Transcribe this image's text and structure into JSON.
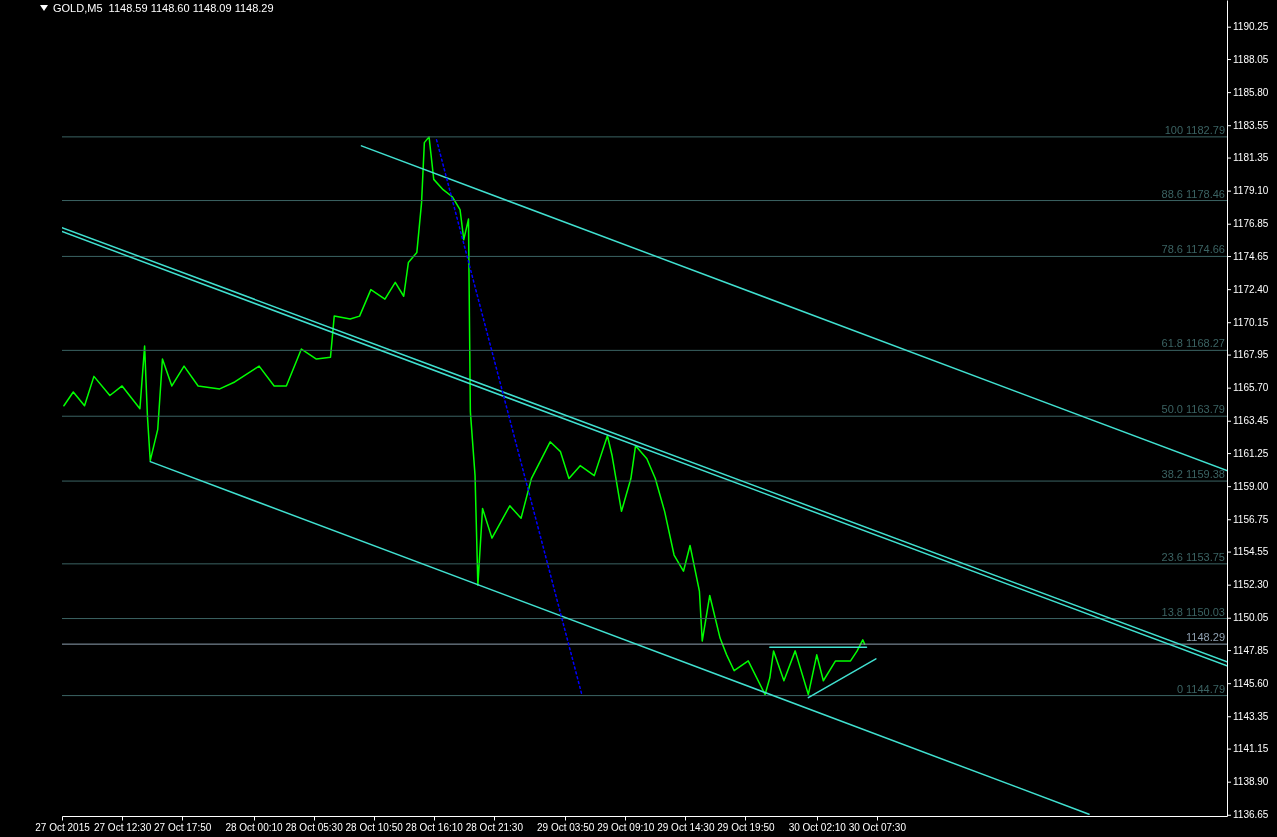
{
  "chart_data": {
    "type": "line",
    "title": "GOLD,M5  1148.59 1148.60 1148.09 1148.29",
    "x": [
      "2015-10-27T07:20",
      "2015-10-27T08:10",
      "2015-10-27T09:10",
      "2015-10-27T10:00",
      "2015-10-27T11:25",
      "2015-10-27T12:30",
      "2015-10-27T14:05",
      "2015-10-27T14:30",
      "2015-10-27T14:45",
      "2015-10-27T15:00",
      "2015-10-27T15:40",
      "2015-10-27T16:05",
      "2015-10-27T16:55",
      "2015-10-27T18:00",
      "2015-10-27T19:15",
      "2015-10-27T21:10",
      "2015-10-27T22:30",
      "2015-10-28T00:40",
      "2015-10-28T02:00",
      "2015-10-28T03:05",
      "2015-10-28T04:25",
      "2015-10-28T05:45",
      "2015-10-28T07:00",
      "2015-10-28T07:20",
      "2015-10-28T08:45",
      "2015-10-28T09:35",
      "2015-10-28T10:35",
      "2015-10-28T11:50",
      "2015-10-28T12:45",
      "2015-10-28T13:30",
      "2015-10-28T13:55",
      "2015-10-28T14:40",
      "2015-10-28T15:05",
      "2015-10-28T15:20",
      "2015-10-28T15:45",
      "2015-10-28T16:10",
      "2015-10-28T17:00",
      "2015-10-28T17:50",
      "2015-10-28T18:30",
      "2015-10-28T18:50",
      "2015-10-28T19:15",
      "2015-10-28T19:25",
      "2015-10-28T19:50",
      "2015-10-28T20:05",
      "2015-10-28T20:30",
      "2015-10-28T21:20",
      "2015-10-28T22:55",
      "2015-10-28T23:55",
      "2015-10-29T00:50",
      "2015-10-29T02:30",
      "2015-10-29T03:25",
      "2015-10-29T04:10",
      "2015-10-29T05:10",
      "2015-10-29T06:25",
      "2015-10-29T07:35",
      "2015-10-29T08:00",
      "2015-10-29T08:50",
      "2015-10-29T09:40",
      "2015-10-29T10:05",
      "2015-10-29T11:05",
      "2015-10-29T11:50",
      "2015-10-29T12:40",
      "2015-10-29T13:30",
      "2015-10-29T14:20",
      "2015-10-29T14:55",
      "2015-10-29T15:45",
      "2015-10-29T16:00",
      "2015-10-29T16:40",
      "2015-10-29T17:35",
      "2015-10-29T18:10",
      "2015-10-29T18:50",
      "2015-10-29T20:05",
      "2015-10-29T21:35",
      "2015-10-29T22:00",
      "2015-10-29T22:20",
      "2015-10-29T23:15",
      "2015-10-30T00:15",
      "2015-10-30T01:25",
      "2015-10-30T02:10",
      "2015-10-30T02:45",
      "2015-10-30T03:50",
      "2015-10-30T05:10",
      "2015-10-30T05:45",
      "2015-10-30T06:15",
      "2015-10-30T06:25"
    ],
    "series": [
      {
        "color": "#00ff00",
        "values": [
          1164.5,
          1165.44,
          1164.5,
          1166.5,
          1165.2,
          1165.85,
          1164.3,
          1168.56,
          1163.8,
          1160.77,
          1162.9,
          1167.68,
          1165.85,
          1167.2,
          1165.85,
          1165.65,
          1166.12,
          1167.2,
          1165.85,
          1165.85,
          1168.36,
          1167.68,
          1167.8,
          1170.6,
          1170.4,
          1170.6,
          1172.4,
          1171.75,
          1172.9,
          1171.95,
          1174.25,
          1174.93,
          1178.3,
          1182.4,
          1182.79,
          1179.9,
          1179.2,
          1178.7,
          1177.85,
          1175.8,
          1177.2,
          1164.1,
          1159.75,
          1152.3,
          1157.52,
          1155.5,
          1157.7,
          1156.85,
          1159.55,
          1162.05,
          1161.38,
          1159.55,
          1160.43,
          1159.75,
          1162.46,
          1161.1,
          1157.32,
          1159.55,
          1161.79,
          1160.9,
          1159.55,
          1157.3,
          1154.35,
          1153.25,
          1155.0,
          1151.9,
          1148.5,
          1151.6,
          1148.7,
          1147.56,
          1146.48,
          1147.15,
          1144.86,
          1146.0,
          1147.83,
          1145.8,
          1147.83,
          1144.86,
          1147.56,
          1145.8,
          1147.15,
          1147.15,
          1147.83,
          1148.58,
          1148.29
        ]
      },
      {
        "type": "line",
        "color": "#40e0d0",
        "x": [
          "2015-10-28T09:45",
          "2015-10-31T14:35"
        ],
        "values": [
          1182.18,
          1160.09
        ]
      },
      {
        "type": "line",
        "color": "#40e0d0",
        "x": [
          "2015-10-27T07:10",
          "2015-10-31T14:35"
        ],
        "values": [
          1176.62,
          1147.08
        ]
      },
      {
        "type": "line",
        "color": "#40e0d0",
        "x": [
          "2015-10-27T07:10",
          "2015-10-31T14:35"
        ],
        "values": [
          1176.35,
          1146.81
        ]
      },
      {
        "type": "line",
        "color": "#40e0d0",
        "x": [
          "2015-10-27T15:00",
          "2015-10-31T02:20"
        ],
        "values": [
          1160.7,
          1136.72
        ]
      },
      {
        "type": "line",
        "color": "#40e0d0",
        "x": [
          "2015-10-29T22:00",
          "2015-10-30T06:35"
        ],
        "values": [
          1148.08,
          1148.08
        ]
      },
      {
        "type": "line",
        "color": "#40e0d0",
        "x": [
          "2015-10-30T01:25",
          "2015-10-30T07:25"
        ],
        "values": [
          1144.65,
          1147.29
        ]
      },
      {
        "type": "line",
        "color": "#0000ff",
        "line_style": "dotted",
        "x": [
          "2015-10-28T16:25",
          "2015-10-29T05:20"
        ],
        "values": [
          1182.59,
          1144.79
        ]
      }
    ],
    "xlim": [
      "2015-10-27T07:10",
      "2015-10-31T14:35"
    ],
    "xticks": [
      {
        "value": "2015-10-27T07:10",
        "label": "27 Oct 2015"
      },
      {
        "value": "2015-10-27T12:30",
        "label": "27 Oct 12:30"
      },
      {
        "value": "2015-10-27T17:50",
        "label": "27 Oct 17:50"
      },
      {
        "value": "2015-10-28T00:10",
        "label": "28 Oct 00:10"
      },
      {
        "value": "2015-10-28T05:30",
        "label": "28 Oct 05:30"
      },
      {
        "value": "2015-10-28T10:50",
        "label": "28 Oct 10:50"
      },
      {
        "value": "2015-10-28T16:10",
        "label": "28 Oct 16:10"
      },
      {
        "value": "2015-10-28T21:30",
        "label": "28 Oct 21:30"
      },
      {
        "value": "2015-10-29T03:50",
        "label": "29 Oct 03:50"
      },
      {
        "value": "2015-10-29T09:10",
        "label": "29 Oct 09:10"
      },
      {
        "value": "2015-10-29T14:30",
        "label": "29 Oct 14:30"
      },
      {
        "value": "2015-10-29T19:50",
        "label": "29 Oct 19:50"
      },
      {
        "value": "2015-10-30T02:10",
        "label": "30 Oct 02:10"
      },
      {
        "value": "2015-10-30T07:30",
        "label": "30 Oct 07:30"
      }
    ],
    "ylim": [
      1136.6,
      1192.1
    ],
    "yticks": [
      1136.65,
      {
        "value": 1138.9,
        "label": "1138.90"
      },
      1141.15,
      1143.35,
      {
        "value": 1145.6,
        "label": "1145.60"
      },
      1147.85,
      1150.05,
      {
        "value": 1152.3,
        "label": "1152.30"
      },
      1154.55,
      1156.75,
      {
        "value": 1159.0,
        "label": "1159.00"
      },
      1161.25,
      1163.45,
      {
        "value": 1165.7,
        "label": "1165.70"
      },
      1167.95,
      1170.15,
      {
        "value": 1172.4,
        "label": "1172.40"
      },
      1174.65,
      1176.85,
      {
        "value": 1179.1,
        "label": "1179.10"
      },
      1181.35,
      1183.55,
      {
        "value": 1185.8,
        "label": "1185.80"
      },
      1188.05,
      1190.25
    ],
    "ref_lines": [
      {
        "axis": "y",
        "value": 1182.79,
        "label": "100 1182.79",
        "color": "#3b6363"
      },
      {
        "axis": "y",
        "value": 1178.46,
        "label": "88.6 1178.46",
        "color": "#3b6363"
      },
      {
        "axis": "y",
        "value": 1174.66,
        "label": "78.6 1174.66",
        "color": "#3b6363"
      },
      {
        "axis": "y",
        "value": 1168.27,
        "label": "61.8 1168.27",
        "color": "#3b6363"
      },
      {
        "axis": "y",
        "value": 1163.79,
        "label": "50.0 1163.79",
        "color": "#3b6363"
      },
      {
        "axis": "y",
        "value": 1159.38,
        "label": "38.2 1159.38",
        "color": "#3b6363"
      },
      {
        "axis": "y",
        "value": 1153.75,
        "label": "23.6 1153.75",
        "color": "#3b6363"
      },
      {
        "axis": "y",
        "value": 1150.03,
        "label": "13.8 1150.03",
        "color": "#3b6363"
      },
      {
        "axis": "y",
        "value": 1144.79,
        "label": "0 1144.79",
        "color": "#3b6363"
      },
      {
        "axis": "y",
        "value": 1148.29,
        "label": "1148.29",
        "color": "#8fa0b0"
      }
    ]
  }
}
